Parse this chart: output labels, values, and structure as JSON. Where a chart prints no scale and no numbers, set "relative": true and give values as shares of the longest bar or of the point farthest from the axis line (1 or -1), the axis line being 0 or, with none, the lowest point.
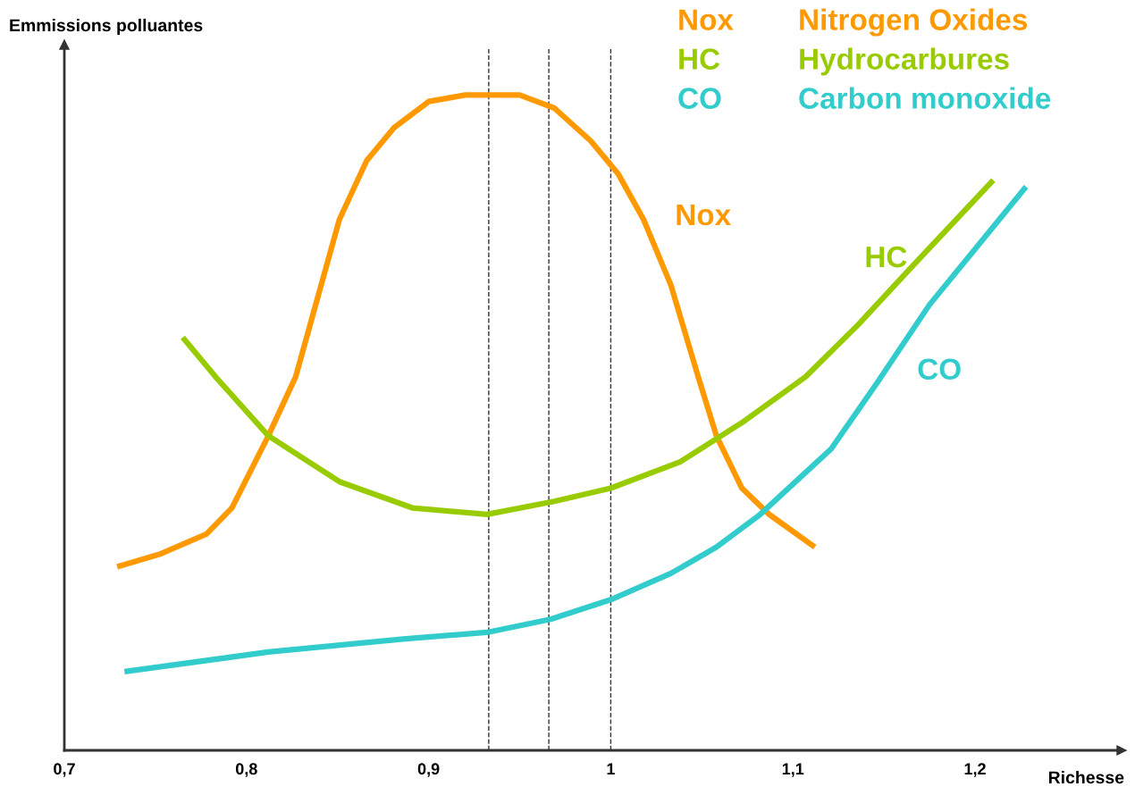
{
  "chart_data": {
    "type": "line",
    "relative": true,
    "xlabel": "Richesse",
    "ylabel": "Emmissions polluantes",
    "xlim": [
      0.7,
      1.278
    ],
    "xticks": [
      {
        "value": 0.7,
        "label": "0,7"
      },
      {
        "value": 0.8,
        "label": "0,8"
      },
      {
        "value": 0.9,
        "label": "0,9"
      },
      1,
      {
        "value": 1.1,
        "label": "1,1"
      },
      {
        "value": 1.2,
        "label": "1,2"
      }
    ],
    "annotations": [
      "Nitrogen Oxides",
      "Hydrocarbures",
      "Carbon monoxide"
    ],
    "legend": "top right",
    "grid": false,
    "marker": "none",
    "line_style": "solid",
    "ref_lines": [
      {
        "axis": "x",
        "value": 0.933,
        "label": null,
        "line_style": "dashed"
      },
      {
        "axis": "x",
        "value": 0.966,
        "label": null,
        "line_style": "dashed"
      },
      {
        "axis": "x",
        "value": 1.0,
        "label": null,
        "line_style": "dashed"
      }
    ],
    "series": [
      {
        "name": "Nox",
        "color": "#ff9900",
        "x": [
          0.729,
          0.753,
          0.778,
          0.792,
          0.812,
          0.827,
          0.837,
          0.851,
          0.866,
          0.881,
          0.9,
          0.92,
          0.95,
          0.969,
          0.989,
          1.004,
          1.018,
          1.033,
          1.048,
          1.058,
          1.072,
          1.087,
          1.112
        ],
        "values": [
          0.28,
          0.3,
          0.33,
          0.37,
          0.48,
          0.57,
          0.67,
          0.81,
          0.9,
          0.95,
          0.99,
          1.0,
          1.0,
          0.98,
          0.93,
          0.88,
          0.81,
          0.71,
          0.57,
          0.48,
          0.4,
          0.36,
          0.31
        ]
      },
      {
        "name": "HC",
        "color": "#99cc00",
        "x": [
          0.765,
          0.783,
          0.812,
          0.851,
          0.891,
          0.932,
          0.969,
          1.0,
          1.038,
          1.072,
          1.107,
          1.136,
          1.166,
          1.21
        ],
        "values": [
          0.63,
          0.57,
          0.48,
          0.41,
          0.37,
          0.36,
          0.38,
          0.4,
          0.44,
          0.5,
          0.57,
          0.65,
          0.74,
          0.87
        ]
      },
      {
        "name": "CO",
        "color": "#33cccc",
        "x": [
          0.733,
          0.812,
          0.886,
          0.932,
          0.967,
          1.0,
          1.033,
          1.058,
          1.082,
          1.121,
          1.146,
          1.175,
          1.228
        ],
        "values": [
          0.12,
          0.15,
          0.17,
          0.18,
          0.2,
          0.23,
          0.27,
          0.31,
          0.36,
          0.46,
          0.56,
          0.68,
          0.86
        ]
      }
    ]
  }
}
